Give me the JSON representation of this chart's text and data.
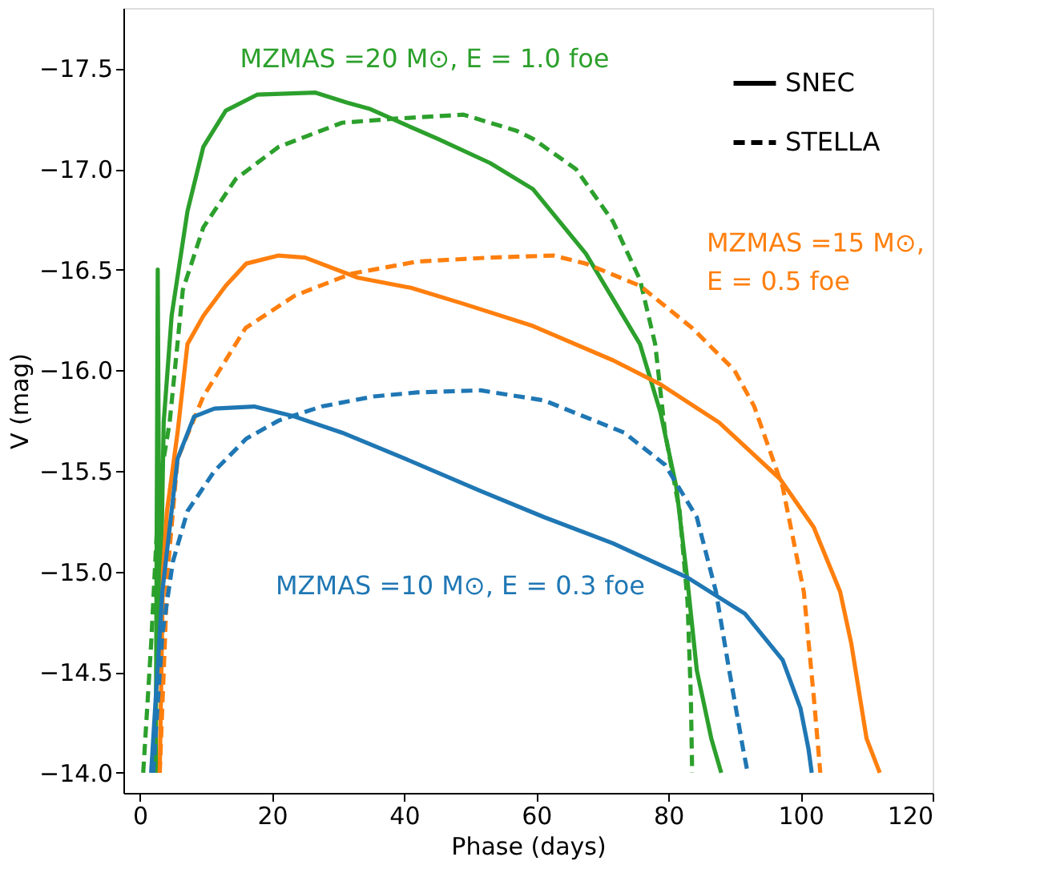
{
  "chart_data": {
    "type": "line",
    "xlabel": "Phase (days)",
    "ylabel": "V (mag)",
    "xlim": [
      -2.5,
      120
    ],
    "xticks": [
      0,
      20,
      40,
      60,
      80,
      100,
      120
    ],
    "ylim": [
      -13.9,
      -17.8
    ],
    "yticks": [
      {
        "value": -14.0,
        "label": "−14.0"
      },
      {
        "value": -14.5,
        "label": "−14.5"
      },
      {
        "value": -15.0,
        "label": "−15.0"
      },
      {
        "value": -15.5,
        "label": "−15.5"
      },
      {
        "value": -16.0,
        "label": "−16.0"
      },
      {
        "value": -16.5,
        "label": "−16.5"
      },
      {
        "value": -17.0,
        "label": "−17.0"
      },
      {
        "value": -17.5,
        "label": "−17.5"
      }
    ],
    "grid": false,
    "marker": "none",
    "series": [
      {
        "color": "#2ca02c",
        "line_style": "solid",
        "x": [
          2.4,
          2.7,
          3.0,
          3.6,
          4.8,
          7.2,
          9.6,
          13,
          17.8,
          26.5,
          31.3,
          34.7,
          39.5,
          45.1,
          53,
          59.5,
          67.5,
          75.7,
          78.8,
          81.2,
          82.9,
          84.3,
          86.5,
          88
        ],
        "values": [
          -14.0,
          -16.5,
          -14.6,
          -15.74,
          -16.27,
          -16.79,
          -17.11,
          -17.29,
          -17.37,
          -17.38,
          -17.33,
          -17.3,
          -17.23,
          -17.15,
          -17.03,
          -16.9,
          -16.58,
          -16.13,
          -15.79,
          -15.42,
          -14.95,
          -14.51,
          -14.17,
          -14.0
        ]
      },
      {
        "color": "#2ca02c",
        "line_style": "dashed",
        "x": [
          0.5,
          1.7,
          2.9,
          4.5,
          6.5,
          9.6,
          14.5,
          21,
          30.6,
          38.6,
          49,
          57,
          59.5,
          66,
          71.6,
          75.7,
          78,
          79.5,
          81.7,
          82.9,
          83.4,
          83.6
        ],
        "values": [
          -14.0,
          -14.64,
          -15.42,
          -15.74,
          -16.4,
          -16.71,
          -16.95,
          -17.11,
          -17.23,
          -17.25,
          -17.27,
          -17.19,
          -17.15,
          -17.0,
          -16.74,
          -16.45,
          -16.13,
          -15.69,
          -15.3,
          -14.85,
          -14.38,
          -14.0
        ]
      },
      {
        "color": "#ff7f0e",
        "line_style": "solid",
        "x": [
          3.0,
          3.5,
          4.1,
          5.7,
          7.2,
          9.6,
          13,
          16.1,
          21,
          25,
          33,
          41,
          49,
          59.5,
          71.6,
          78.8,
          87.7,
          96.9,
          102,
          106,
          107.7,
          110,
          112
        ],
        "values": [
          -14.0,
          -15.0,
          -15.3,
          -15.69,
          -16.13,
          -16.27,
          -16.42,
          -16.53,
          -16.57,
          -16.56,
          -16.46,
          -16.41,
          -16.33,
          -16.22,
          -16.05,
          -15.93,
          -15.74,
          -15.46,
          -15.22,
          -14.9,
          -14.64,
          -14.17,
          -14.0
        ]
      },
      {
        "color": "#ff7f0e",
        "line_style": "dashed",
        "x": [
          3.0,
          4.2,
          5.7,
          9.6,
          16,
          23.4,
          32,
          42,
          53,
          62.6,
          67.5,
          75.7,
          83.6,
          90,
          93,
          97.3,
          100.5,
          102,
          103
        ],
        "values": [
          -14.0,
          -15.0,
          -15.56,
          -15.87,
          -16.21,
          -16.37,
          -16.48,
          -16.54,
          -16.56,
          -16.57,
          -16.53,
          -16.42,
          -16.21,
          -16.0,
          -15.82,
          -15.42,
          -14.9,
          -14.38,
          -14.0
        ]
      },
      {
        "color": "#1f77b4",
        "line_style": "solid",
        "x": [
          1.7,
          3.4,
          5.7,
          8.2,
          11.3,
          17.3,
          23.4,
          30.6,
          40.2,
          51.6,
          61.2,
          71.6,
          82.9,
          91.6,
          97.3,
          100,
          101.2,
          101.7
        ],
        "values": [
          -14.0,
          -14.9,
          -15.56,
          -15.77,
          -15.81,
          -15.82,
          -15.77,
          -15.69,
          -15.56,
          -15.4,
          -15.27,
          -15.14,
          -14.97,
          -14.79,
          -14.56,
          -14.32,
          -14.12,
          -14.0
        ]
      },
      {
        "color": "#1f77b4",
        "line_style": "dashed",
        "x": [
          2.0,
          3.4,
          5.0,
          7.2,
          11.3,
          16.1,
          21,
          27.5,
          35.4,
          42,
          51.6,
          61.2,
          73.3,
          79.5,
          84.3,
          87.2,
          89.2,
          91.3,
          92
        ],
        "values": [
          -14.0,
          -14.69,
          -15.05,
          -15.3,
          -15.5,
          -15.66,
          -15.75,
          -15.82,
          -15.87,
          -15.89,
          -15.9,
          -15.85,
          -15.69,
          -15.53,
          -15.27,
          -14.9,
          -14.51,
          -14.12,
          -14.0
        ]
      }
    ],
    "annotations": [
      "MZMAS =20 M⊙, E = 1.0 foe",
      "MZMAS =15 M⊙,\nE = 0.5 foe",
      "MZMAS =10 M⊙, E = 0.3 foe",
      "SNEC",
      "STELLA"
    ]
  }
}
